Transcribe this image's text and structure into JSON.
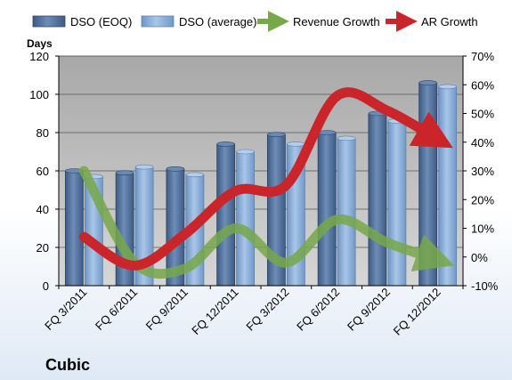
{
  "chart_data": {
    "type": "bar",
    "title": "Cubic",
    "ylabel": "Days",
    "categories": [
      "FQ 3/2011",
      "FQ 6/2011",
      "FQ 9/2011",
      "FQ 12/2011",
      "FQ 3/2012",
      "FQ 6/2012",
      "FQ 9/2012",
      "FQ 12/2012"
    ],
    "ylim": [
      0,
      120
    ],
    "yticks": [
      "0",
      "20",
      "40",
      "60",
      "80",
      "100",
      "120"
    ],
    "y2lim": [
      -10,
      70
    ],
    "y2ticks": [
      "-10%",
      "0%",
      "10%",
      "20%",
      "30%",
      "40%",
      "50%",
      "60%",
      "70%"
    ],
    "series": [
      {
        "name": "DSO (EOQ)",
        "type": "bar",
        "axis": "left",
        "color": "#4f6f99",
        "values": [
          60,
          59,
          61,
          74,
          79,
          80,
          90,
          106
        ]
      },
      {
        "name": "DSO (average)",
        "type": "bar",
        "axis": "left",
        "color": "#89add7",
        "values": [
          57,
          62,
          58,
          70,
          74,
          77,
          86,
          104
        ]
      },
      {
        "name": "Revenue Growth",
        "type": "line",
        "axis": "right",
        "color": "#77a84a",
        "values": [
          30,
          -2,
          -4,
          10,
          -2,
          13,
          5,
          -1
        ]
      },
      {
        "name": "AR Growth",
        "type": "line",
        "axis": "right",
        "color": "#c9252b",
        "values": [
          7,
          -3,
          8,
          23,
          25,
          56,
          51,
          41
        ]
      }
    ],
    "grid": true,
    "legend_position": "top"
  }
}
